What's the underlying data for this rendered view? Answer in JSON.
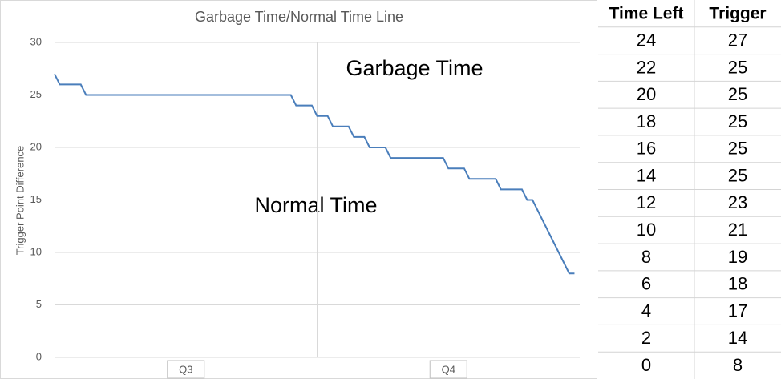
{
  "chart_data": {
    "type": "line",
    "title": "Garbage Time/Normal Time Line",
    "y_label": "Trigger Point Difference",
    "annotations": [
      "Garbage Time",
      "Normal Time"
    ],
    "x": [
      0,
      1,
      5,
      6,
      45,
      46,
      49,
      50,
      52,
      53,
      56,
      57,
      59,
      60,
      63,
      64,
      74,
      75,
      78,
      79,
      84,
      85,
      89,
      90,
      91,
      98,
      99
    ],
    "values": [
      27,
      26,
      26,
      25,
      25,
      24,
      24,
      23,
      23,
      22,
      22,
      21,
      21,
      20,
      20,
      19,
      19,
      18,
      18,
      17,
      17,
      16,
      16,
      15,
      15,
      8,
      8
    ],
    "color": "#4a7ebb",
    "xlim": [
      0,
      100
    ],
    "xticks": [
      {
        "value": 25,
        "label": "Q3"
      },
      {
        "value": 75,
        "label": "Q4"
      }
    ],
    "divider_x": 50,
    "ylim": [
      0,
      30
    ],
    "yticks": [
      0,
      5,
      10,
      15,
      20,
      25,
      30
    ],
    "grid": true
  },
  "table": {
    "header": [
      "Time Left",
      "Trigger"
    ],
    "rows": [
      [
        24,
        27
      ],
      [
        22,
        25
      ],
      [
        20,
        25
      ],
      [
        18,
        25
      ],
      [
        16,
        25
      ],
      [
        14,
        25
      ],
      [
        12,
        23
      ],
      [
        10,
        21
      ],
      [
        8,
        19
      ],
      [
        6,
        18
      ],
      [
        4,
        17
      ],
      [
        2,
        14
      ],
      [
        0,
        8
      ]
    ]
  }
}
